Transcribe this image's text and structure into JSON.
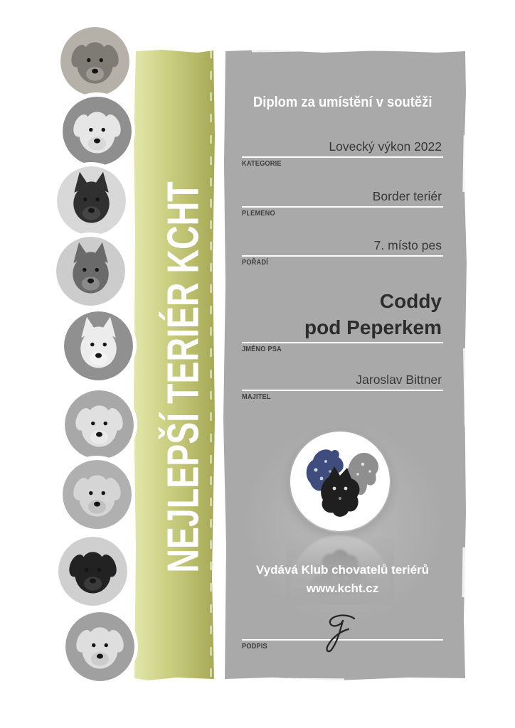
{
  "colors": {
    "accent_olive": "#a6aa55",
    "panel_gray": "#a9a9a9",
    "logo_navy": "#3e4c7e",
    "text_dark": "#383838",
    "text_white": "#ffffff"
  },
  "banner": {
    "text": "NEJLEPŠÍ TERIÉR KCHT"
  },
  "dogs": [
    {
      "name": "border-terrier",
      "bg": "#b5b0a8",
      "fur": "#7e7a74",
      "muzzle": "#9e9a94",
      "ears": "floppy"
    },
    {
      "name": "bedlington-terrier",
      "bg": "#8f8f8f",
      "fur": "#e6e6e6",
      "muzzle": "#d8d8d8",
      "ears": "floppy"
    },
    {
      "name": "jagdterrier",
      "bg": "#d8d8d8",
      "fur": "#303030",
      "muzzle": "#454545",
      "ears": "pointy"
    },
    {
      "name": "cairn-terrier",
      "bg": "#cccccc",
      "fur": "#6a6a6a",
      "muzzle": "#8a8a8a",
      "ears": "pointy"
    },
    {
      "name": "west-highland-white-terrier",
      "bg": "#909090",
      "fur": "#ececec",
      "muzzle": "#f2f2f2",
      "ears": "pointy"
    },
    {
      "name": "parson-russell-terrier",
      "bg": "#a8a8a8",
      "fur": "#e0e0e0",
      "muzzle": "#eaeaea",
      "ears": "floppy"
    },
    {
      "name": "fox-terrier",
      "bg": "#b0b0b0",
      "fur": "#d5d5d5",
      "muzzle": "#c2c2c2",
      "ears": "floppy"
    },
    {
      "name": "black-terrier",
      "bg": "#cfcfcf",
      "fur": "#222222",
      "muzzle": "#3a3a3a",
      "ears": "floppy"
    },
    {
      "name": "dandie-dinmont-terrier",
      "bg": "#a0a0a0",
      "fur": "#dedede",
      "muzzle": "#cccccc",
      "ears": "floppy"
    }
  ],
  "certificate": {
    "title": "Diplom za umístění v soutěži",
    "fields": [
      {
        "label": "KATEGORIE",
        "value": "Lovecký výkon 2022"
      },
      {
        "label": "PLEMENO",
        "value": "Border teriér"
      },
      {
        "label": "POŘADÍ",
        "value": "7. místo pes"
      },
      {
        "label": "JMÉNO PSA",
        "value": "Coddy pod Peperkem",
        "value_lines": [
          "Coddy",
          "pod Peperkem"
        ]
      },
      {
        "label": "MAJITEL",
        "value": "Jaroslav Bittner"
      },
      {
        "label": "PODPIS",
        "value": ""
      }
    ],
    "issuer_line1": "Vydává Klub chovatelů teriérů",
    "issuer_line2": "www.kcht.cz",
    "logo": "kcht-terrier-heads-logo",
    "signature": "handwritten-signature"
  }
}
